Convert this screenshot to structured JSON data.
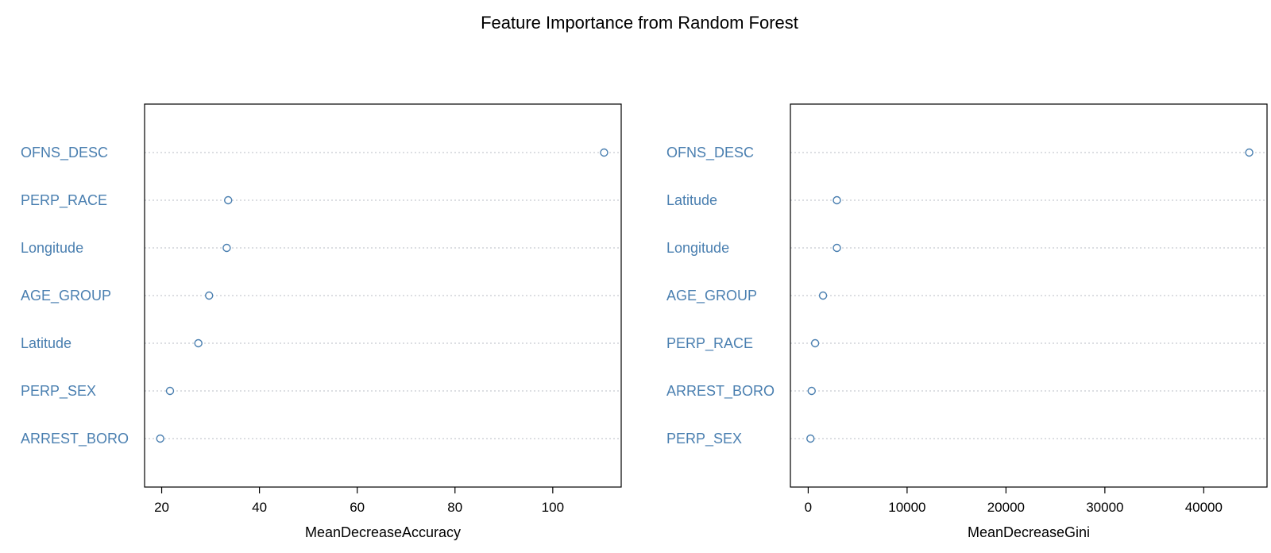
{
  "title": "Feature Importance from Random Forest",
  "colors": {
    "points": "#4a7fb0",
    "labels": "#4a7fb0",
    "dotline": "#b9bec6",
    "frame": "#000000"
  },
  "chart_data": [
    {
      "type": "scatter",
      "title": "",
      "xlabel": "MeanDecreaseAccuracy",
      "ylabel": "",
      "categories": [
        "OFNS_DESC",
        "PERP_RACE",
        "Longitude",
        "AGE_GROUP",
        "Latitude",
        "PERP_SEX",
        "ARREST_BORO"
      ],
      "values": [
        110.5,
        33.6,
        33.3,
        29.7,
        27.5,
        21.7,
        19.7
      ],
      "xlim": [
        16.5,
        114.0
      ],
      "xticks": [
        20,
        40,
        60,
        80,
        100
      ],
      "grid": "dotted-horizontal"
    },
    {
      "type": "scatter",
      "title": "",
      "xlabel": "MeanDecreaseGini",
      "ylabel": "",
      "categories": [
        "OFNS_DESC",
        "Latitude",
        "Longitude",
        "AGE_GROUP",
        "PERP_RACE",
        "ARREST_BORO",
        "PERP_SEX"
      ],
      "values": [
        44600,
        2900,
        2900,
        1500,
        700,
        350,
        230
      ],
      "xlim": [
        -1800,
        46400
      ],
      "xticks": [
        0,
        10000,
        20000,
        30000,
        40000
      ],
      "grid": "dotted-horizontal"
    }
  ]
}
